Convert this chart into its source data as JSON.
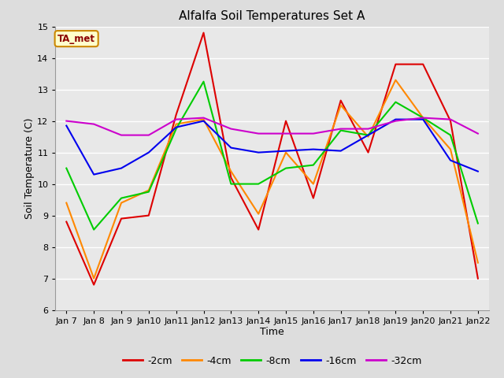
{
  "title": "Alfalfa Soil Temperatures Set A",
  "xlabel": "Time",
  "ylabel": "Soil Temperature (C)",
  "annotation": "TA_met",
  "x_labels": [
    "Jan 7",
    "Jan 8",
    "Jan 9",
    "Jan 10",
    "Jan 11",
    "Jan 12",
    "Jan 13",
    "Jan 14",
    "Jan 15",
    "Jan 16",
    "Jan 17",
    "Jan 18",
    "Jan 19",
    "Jan 20",
    "Jan 21",
    "Jan 22"
  ],
  "ylim": [
    6.0,
    15.0
  ],
  "yticks": [
    6.0,
    7.0,
    8.0,
    9.0,
    10.0,
    11.0,
    12.0,
    13.0,
    14.0,
    15.0
  ],
  "series": {
    "-2cm": [
      8.8,
      6.8,
      8.9,
      9.0,
      12.2,
      14.8,
      10.2,
      8.55,
      12.0,
      9.55,
      12.65,
      11.0,
      13.8,
      13.8,
      12.0,
      7.0
    ],
    "-4cm": [
      9.4,
      7.0,
      9.4,
      9.8,
      11.9,
      12.05,
      10.4,
      9.05,
      11.0,
      10.0,
      12.5,
      11.5,
      13.3,
      12.1,
      11.1,
      7.5
    ],
    "-8cm": [
      10.5,
      8.55,
      9.55,
      9.75,
      11.75,
      13.25,
      10.0,
      10.0,
      10.5,
      10.6,
      11.7,
      11.55,
      12.6,
      12.1,
      11.55,
      8.75
    ],
    "-16cm": [
      11.85,
      10.3,
      10.5,
      11.0,
      11.8,
      12.0,
      11.15,
      11.0,
      11.05,
      11.1,
      11.05,
      11.55,
      12.05,
      12.05,
      10.75,
      10.4
    ],
    "-32cm": [
      12.0,
      11.9,
      11.55,
      11.55,
      12.05,
      12.1,
      11.75,
      11.6,
      11.6,
      11.6,
      11.75,
      11.75,
      12.0,
      12.1,
      12.05,
      11.6
    ]
  },
  "colors": {
    "-2cm": "#dd0000",
    "-4cm": "#ff8800",
    "-8cm": "#00cc00",
    "-16cm": "#0000ee",
    "-32cm": "#cc00cc"
  },
  "background_color": "#dddddd",
  "plot_bg_color": "#e8e8e8",
  "grid_color": "#ffffff",
  "linewidth": 1.5,
  "title_fontsize": 11,
  "axis_label_fontsize": 9,
  "tick_fontsize": 8,
  "legend_fontsize": 9
}
